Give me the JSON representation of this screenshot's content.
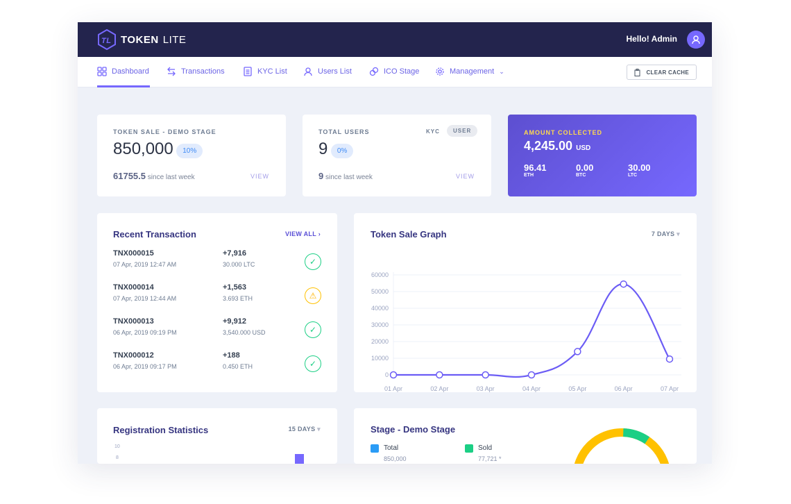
{
  "header": {
    "brand_bold": "TOKEN",
    "brand_light": "LITE",
    "greeting": "Hello! Admin"
  },
  "nav": {
    "items": [
      {
        "label": "Dashboard",
        "icon": "grid-icon"
      },
      {
        "label": "Transactions",
        "icon": "swap-icon"
      },
      {
        "label": "KYC List",
        "icon": "document-icon"
      },
      {
        "label": "Users List",
        "icon": "user-icon"
      },
      {
        "label": "ICO Stage",
        "icon": "coins-icon"
      },
      {
        "label": "Management",
        "icon": "gear-icon"
      }
    ],
    "clear_cache": "CLEAR CACHE"
  },
  "token_sale": {
    "label": "TOKEN SALE - DEMO STAGE",
    "value": "850,000",
    "percent": "10%",
    "week_value": "61755.5",
    "week_text": "since last week",
    "view": "VIEW"
  },
  "users": {
    "label": "TOTAL USERS",
    "tab_kyc": "KYC",
    "tab_user": "USER",
    "value": "9",
    "percent": "0%",
    "week_value": "9",
    "week_text": "since last week",
    "view": "VIEW"
  },
  "amount": {
    "label": "AMOUNT COLLECTED",
    "value": "4,245.00",
    "unit": "USD",
    "currencies": [
      {
        "value": "96.41",
        "code": "ETH"
      },
      {
        "value": "0.00",
        "code": "BTC"
      },
      {
        "value": "30.00",
        "code": "LTC"
      }
    ]
  },
  "recent": {
    "title": "Recent Transaction",
    "view_all": "VIEW ALL",
    "rows": [
      {
        "id": "TNX000015",
        "date": "07 Apr, 2019 12:47 AM",
        "amount": "+7,916",
        "sub": "30.000 LTC",
        "status": "success"
      },
      {
        "id": "TNX000014",
        "date": "07 Apr, 2019 12:44 AM",
        "amount": "+1,563",
        "sub": "3.693 ETH",
        "status": "warning"
      },
      {
        "id": "TNX000013",
        "date": "06 Apr, 2019 09:19 PM",
        "amount": "+9,912",
        "sub": "3,540.000 USD",
        "status": "success"
      },
      {
        "id": "TNX000012",
        "date": "06 Apr, 2019 09:17 PM",
        "amount": "+188",
        "sub": "0.450 ETH",
        "status": "success"
      }
    ]
  },
  "chart_data": [
    {
      "type": "line",
      "title": "Token Sale Graph",
      "period": "7 DAYS",
      "categories": [
        "01 Apr",
        "02 Apr",
        "03 Apr",
        "04 Apr",
        "05 Apr",
        "06 Apr",
        "07 Apr"
      ],
      "values": [
        0,
        0,
        0,
        0,
        14000,
        54500,
        9500
      ],
      "ylim": [
        0,
        60000
      ],
      "yticks": [
        0,
        10000,
        20000,
        30000,
        40000,
        50000,
        60000
      ],
      "grid": true,
      "color": "#6b5cf5"
    },
    {
      "type": "bar",
      "title": "Registration Statistics",
      "period": "15 DAYS",
      "yticks_visible": [
        "10",
        "8"
      ]
    }
  ],
  "stage": {
    "title": "Stage - Demo Stage",
    "total_label": "Total",
    "total_value": "850,000",
    "sold_label": "Sold",
    "sold_value": "77,721 *",
    "colors": {
      "total": "#2b9cf6",
      "sold": "#1ccf85",
      "remaining": "#ffc100"
    },
    "sold_fraction": 0.09
  }
}
